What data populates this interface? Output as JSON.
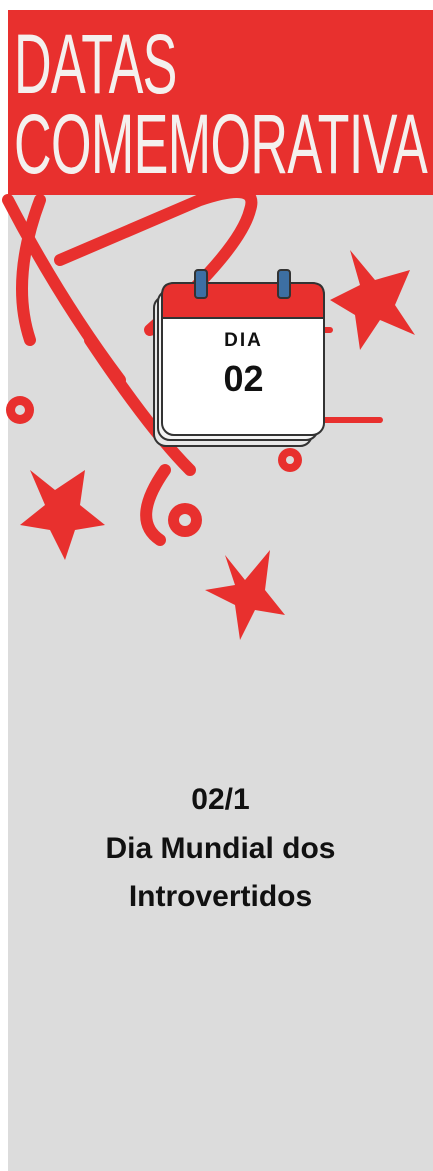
{
  "banner": {
    "line1": "DATAS",
    "line2": "COMEMORATIVA"
  },
  "calendar": {
    "label": "DIA",
    "day": "02"
  },
  "event": {
    "date": "02/1",
    "name_lines": [
      "Dia Mundial dos",
      "Introvertidos"
    ]
  }
}
